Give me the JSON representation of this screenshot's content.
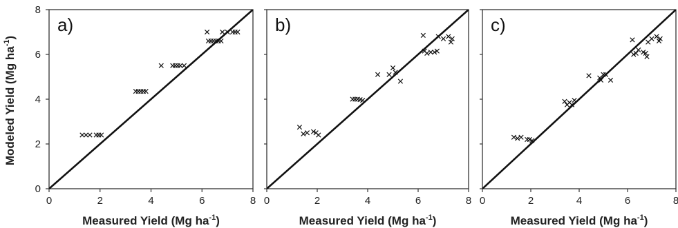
{
  "chart_data": [
    {
      "type": "scatter",
      "panel_label": "a)",
      "xlabel": "Measured Yield (Mg ha",
      "ylabel": "Modeled Yield (Mg ha",
      "xlim": [
        0,
        8
      ],
      "ylim": [
        0,
        8
      ],
      "xticks": [
        "0",
        "2",
        "4",
        "6",
        "8"
      ],
      "yticks": [
        "0",
        "2",
        "4",
        "6",
        "8"
      ],
      "reference_line": "1:1",
      "points": [
        [
          1.3,
          2.4
        ],
        [
          1.45,
          2.4
        ],
        [
          1.6,
          2.4
        ],
        [
          1.85,
          2.4
        ],
        [
          1.95,
          2.4
        ],
        [
          2.05,
          2.4
        ],
        [
          3.4,
          4.35
        ],
        [
          3.5,
          4.35
        ],
        [
          3.6,
          4.35
        ],
        [
          3.7,
          4.35
        ],
        [
          3.8,
          4.35
        ],
        [
          4.4,
          5.5
        ],
        [
          4.85,
          5.5
        ],
        [
          4.95,
          5.5
        ],
        [
          5.05,
          5.5
        ],
        [
          5.15,
          5.5
        ],
        [
          5.3,
          5.5
        ],
        [
          6.2,
          7.0
        ],
        [
          6.25,
          6.6
        ],
        [
          6.35,
          6.6
        ],
        [
          6.45,
          6.6
        ],
        [
          6.55,
          6.6
        ],
        [
          6.65,
          6.6
        ],
        [
          6.75,
          6.6
        ],
        [
          6.8,
          7.0
        ],
        [
          7.0,
          7.0
        ],
        [
          7.2,
          7.0
        ],
        [
          7.3,
          7.0
        ],
        [
          7.4,
          7.0
        ]
      ]
    },
    {
      "type": "scatter",
      "panel_label": "b)",
      "xlabel": "Measured Yield (Mg ha",
      "xlim": [
        0,
        8
      ],
      "ylim": [
        0,
        8
      ],
      "xticks": [
        "0",
        "2",
        "4",
        "6",
        "8"
      ],
      "reference_line": "1:1",
      "points": [
        [
          1.3,
          2.75
        ],
        [
          1.45,
          2.45
        ],
        [
          1.6,
          2.5
        ],
        [
          1.85,
          2.55
        ],
        [
          1.95,
          2.5
        ],
        [
          2.05,
          2.4
        ],
        [
          3.4,
          4.0
        ],
        [
          3.5,
          4.0
        ],
        [
          3.6,
          4.0
        ],
        [
          3.7,
          3.98
        ],
        [
          3.8,
          3.95
        ],
        [
          4.4,
          5.1
        ],
        [
          4.85,
          5.1
        ],
        [
          5.0,
          5.4
        ],
        [
          5.1,
          5.2
        ],
        [
          5.3,
          4.8
        ],
        [
          6.2,
          6.85
        ],
        [
          6.25,
          6.15
        ],
        [
          6.35,
          6.05
        ],
        [
          6.5,
          6.1
        ],
        [
          6.65,
          6.1
        ],
        [
          6.75,
          6.15
        ],
        [
          6.8,
          6.8
        ],
        [
          7.0,
          6.7
        ],
        [
          7.2,
          6.8
        ],
        [
          7.3,
          6.55
        ],
        [
          7.35,
          6.7
        ]
      ]
    },
    {
      "type": "scatter",
      "panel_label": "c)",
      "xlabel": "Measured Yield (Mg ha",
      "xlim": [
        0,
        8
      ],
      "ylim": [
        0,
        8
      ],
      "xticks": [
        "0",
        "2",
        "4",
        "6",
        "8"
      ],
      "reference_line": "1:1",
      "points": [
        [
          1.3,
          2.3
        ],
        [
          1.45,
          2.25
        ],
        [
          1.6,
          2.3
        ],
        [
          1.85,
          2.2
        ],
        [
          1.95,
          2.2
        ],
        [
          2.05,
          2.15
        ],
        [
          3.4,
          3.9
        ],
        [
          3.5,
          3.75
        ],
        [
          3.6,
          3.85
        ],
        [
          3.7,
          3.75
        ],
        [
          3.8,
          3.95
        ],
        [
          4.4,
          5.05
        ],
        [
          4.85,
          4.95
        ],
        [
          4.9,
          4.85
        ],
        [
          5.0,
          5.1
        ],
        [
          5.1,
          5.1
        ],
        [
          5.3,
          4.85
        ],
        [
          6.2,
          6.65
        ],
        [
          6.25,
          6.0
        ],
        [
          6.35,
          6.05
        ],
        [
          6.45,
          6.2
        ],
        [
          6.65,
          6.1
        ],
        [
          6.75,
          6.05
        ],
        [
          6.8,
          5.9
        ],
        [
          6.85,
          6.55
        ],
        [
          7.0,
          6.7
        ],
        [
          7.2,
          6.8
        ],
        [
          7.3,
          6.6
        ],
        [
          7.35,
          6.7
        ]
      ]
    }
  ]
}
